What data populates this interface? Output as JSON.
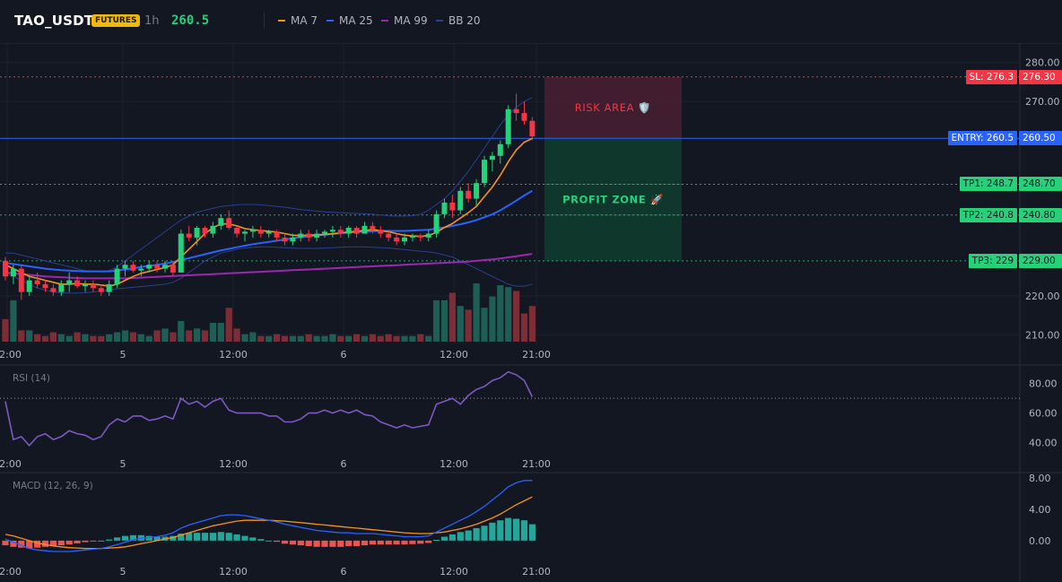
{
  "header": {
    "symbol": "TAO_USDT",
    "badge": "FUTURES",
    "timeframe": "1h",
    "price": "260.5",
    "legend": [
      {
        "label": "MA 7",
        "color": "#f7931a"
      },
      {
        "label": "MA 25",
        "color": "#2962ff"
      },
      {
        "label": "MA 99",
        "color": "#9c27b0"
      },
      {
        "label": "BB 20",
        "color": "#2a3f8f"
      }
    ]
  },
  "main_axis": {
    "ticks": [
      "280.00",
      "270.00",
      "220.00",
      "210.00"
    ],
    "tick_values": [
      280,
      270,
      220,
      210
    ],
    "range": [
      208,
      285
    ]
  },
  "levels": {
    "sl": {
      "tag": "SL: 276.3",
      "price": "276.30",
      "value": 276.3,
      "color": "#f23645"
    },
    "entry": {
      "tag": "ENTRY: 260.5",
      "price": "260.50",
      "value": 260.5,
      "color": "#2962ff"
    },
    "tp1": {
      "tag": "TP1: 248.7",
      "price": "248.70",
      "value": 248.7,
      "color": "#26d17a"
    },
    "tp2": {
      "tag": "TP2: 240.8",
      "price": "240.80",
      "value": 240.8,
      "color": "#26d17a"
    },
    "tp3": {
      "tag": "TP3: 229",
      "price": "229.00",
      "value": 229,
      "color": "#26d17a"
    }
  },
  "zones": {
    "risk_label": "RISK AREA 🛡️",
    "profit_label": "PROFIT ZONE 🚀"
  },
  "time_axis": [
    "12:00",
    "5",
    "12:00",
    "6",
    "12:00",
    "21:00"
  ],
  "rsi": {
    "title": "RSI (14)",
    "ticks": [
      "80.00",
      "60.00",
      "40.00"
    ],
    "tick_values": [
      80,
      60,
      40
    ],
    "overbought": 70,
    "range": [
      33,
      92
    ],
    "color": "#7e57c2"
  },
  "macd": {
    "title": "MACD (12, 26, 9)",
    "ticks": [
      "8.00",
      "4.00",
      "0.00"
    ],
    "tick_values": [
      8,
      4,
      0
    ],
    "range": [
      -2.2,
      8.6
    ],
    "macd_color": "#2962ff",
    "signal_color": "#f7931a",
    "hist_up": "#26a69a",
    "hist_down": "#ef5350"
  },
  "colors": {
    "up": "#26d17a",
    "down": "#f23645",
    "vol_up": "#1f5e55",
    "vol_down": "#7d2d35",
    "grid": "#1e222d"
  },
  "chart_data": {
    "type": "candlestick",
    "candles": [
      [
        229,
        230,
        224,
        225
      ],
      [
        225,
        228,
        223,
        227
      ],
      [
        227,
        228,
        219,
        221
      ],
      [
        221,
        225,
        220,
        224
      ],
      [
        224,
        226,
        222,
        223
      ],
      [
        223,
        224,
        221,
        222
      ],
      [
        222,
        223,
        220,
        221
      ],
      [
        221,
        224,
        220,
        223
      ],
      [
        223,
        226,
        221,
        224
      ],
      [
        224,
        225,
        222,
        222.5
      ],
      [
        222.5,
        224,
        221,
        223
      ],
      [
        223,
        224,
        221,
        222
      ],
      [
        222,
        223,
        220,
        221
      ],
      [
        221,
        224,
        220,
        223
      ],
      [
        223,
        228,
        222,
        227
      ],
      [
        227,
        229,
        225,
        228
      ],
      [
        228,
        229,
        226,
        226.5
      ],
      [
        226.5,
        228,
        225,
        227
      ],
      [
        227,
        229,
        226,
        228
      ],
      [
        228,
        229,
        226,
        227
      ],
      [
        227,
        229,
        226,
        228
      ],
      [
        228,
        229,
        225,
        226
      ],
      [
        226,
        237,
        226,
        236
      ],
      [
        236,
        238,
        234,
        235
      ],
      [
        235,
        238,
        233,
        237.5
      ],
      [
        237.5,
        238,
        235,
        236
      ],
      [
        236,
        239,
        235,
        238
      ],
      [
        238,
        241,
        237,
        240
      ],
      [
        240,
        242,
        237,
        237.5
      ],
      [
        237.5,
        238,
        235,
        236
      ],
      [
        236,
        237,
        234,
        236.5
      ],
      [
        236.5,
        238,
        235,
        237
      ],
      [
        237,
        238,
        235,
        236
      ],
      [
        236,
        237,
        235,
        236.5
      ],
      [
        236.5,
        237,
        234,
        235
      ],
      [
        235,
        236,
        233,
        234
      ],
      [
        234,
        236,
        233,
        235
      ],
      [
        235,
        237,
        234,
        236
      ],
      [
        236,
        237,
        234,
        235
      ],
      [
        235,
        237,
        234,
        236
      ],
      [
        236,
        237,
        235,
        236.5
      ],
      [
        236.5,
        238,
        235,
        237
      ],
      [
        237,
        238,
        235,
        236
      ],
      [
        236,
        238,
        235,
        237.5
      ],
      [
        237.5,
        238,
        235,
        236
      ],
      [
        236,
        239,
        236,
        238
      ],
      [
        238,
        239,
        236,
        237
      ],
      [
        237,
        238,
        235,
        236
      ],
      [
        236,
        237,
        234,
        235
      ],
      [
        235,
        236,
        233,
        234
      ],
      [
        234,
        236,
        233,
        235
      ],
      [
        235,
        236,
        234,
        235.5
      ],
      [
        235.5,
        236,
        234,
        235
      ],
      [
        235,
        237,
        234,
        236
      ],
      [
        236,
        242,
        235,
        241
      ],
      [
        241,
        245,
        240,
        244
      ],
      [
        244,
        246,
        240,
        242
      ],
      [
        242,
        248,
        241,
        247
      ],
      [
        247,
        249,
        244,
        245
      ],
      [
        245,
        250,
        243,
        249
      ],
      [
        249,
        256,
        248,
        255
      ],
      [
        255,
        257,
        252,
        256
      ],
      [
        256,
        260,
        254,
        259
      ],
      [
        259,
        269,
        258,
        268
      ],
      [
        268,
        272,
        265,
        267
      ],
      [
        267,
        270,
        264,
        265
      ],
      [
        265,
        266,
        260,
        261
      ]
    ],
    "ma7_series": [
      228,
      227,
      226,
      225,
      224.5,
      224,
      223.5,
      223,
      223,
      223.2,
      223,
      223,
      222.8,
      222.5,
      223,
      224,
      225,
      225.8,
      226.3,
      226.8,
      227.3,
      228,
      230,
      232,
      234,
      236,
      237.5,
      238.5,
      238.5,
      238,
      237.3,
      237,
      236.8,
      236.6,
      236.4,
      236,
      235.6,
      235.5,
      235.6,
      235.7,
      235.8,
      236,
      236.2,
      236.4,
      236.6,
      236.8,
      237,
      236.8,
      236.5,
      236,
      235.6,
      235.4,
      235.3,
      235.5,
      236.3,
      237.6,
      238.6,
      240,
      241.4,
      243,
      245.5,
      248,
      251,
      254.5,
      257.5,
      259.5,
      260.5
    ],
    "ma25_series": [
      228.5,
      228.2,
      227.9,
      227.6,
      227.3,
      227,
      226.8,
      226.6,
      226.5,
      226.4,
      226.3,
      226.3,
      226.3,
      226.3,
      226.5,
      226.8,
      227.1,
      227.4,
      227.7,
      228,
      228.3,
      228.7,
      229.2,
      229.7,
      230.2,
      230.7,
      231.2,
      231.7,
      232.1,
      232.5,
      232.9,
      233.3,
      233.6,
      233.9,
      234.2,
      234.5,
      234.8,
      235.1,
      235.3,
      235.5,
      235.7,
      235.9,
      236.1,
      236.3,
      236.4,
      236.5,
      236.6,
      236.7,
      236.7,
      236.7,
      236.7,
      236.8,
      236.9,
      237,
      237.3,
      237.6,
      238,
      238.4,
      238.9,
      239.5,
      240.2,
      241,
      242,
      243.2,
      244.5,
      245.8,
      247
    ],
    "ma99_series": [
      226,
      225.8,
      225.6,
      225.4,
      225.2,
      225,
      224.9,
      224.8,
      224.7,
      224.6,
      224.5,
      224.5,
      224.5,
      224.5,
      224.5,
      224.5,
      224.6,
      224.7,
      224.8,
      224.9,
      225,
      225.1,
      225.2,
      225.3,
      225.4,
      225.5,
      225.6,
      225.7,
      225.8,
      225.9,
      226,
      226.1,
      226.2,
      226.3,
      226.4,
      226.5,
      226.6,
      226.7,
      226.8,
      226.9,
      227,
      227.1,
      227.2,
      227.3,
      227.4,
      227.5,
      227.6,
      227.7,
      227.8,
      227.9,
      228,
      228.1,
      228.2,
      228.3,
      228.4,
      228.5,
      228.6,
      228.7,
      228.8,
      229,
      229.2,
      229.4,
      229.6,
      229.9,
      230.2,
      230.5,
      230.8
    ],
    "bb_upper": [
      231,
      231,
      230.5,
      230,
      229.5,
      229,
      228.5,
      228,
      227.5,
      227,
      226.5,
      226.3,
      226.2,
      226.5,
      227.5,
      229,
      230.5,
      232,
      233.5,
      235,
      236.5,
      238,
      239.5,
      240.5,
      241.5,
      242,
      242.5,
      243,
      243.2,
      243.4,
      243.5,
      243.5,
      243.4,
      243.2,
      243,
      242.8,
      242.5,
      242.2,
      242,
      241.8,
      241.6,
      241.5,
      241.4,
      241.3,
      241.2,
      241.1,
      241,
      240.8,
      240.6,
      240.5,
      240.5,
      240.6,
      241,
      242,
      243.5,
      245,
      247,
      249.5,
      252,
      255,
      258,
      261,
      264,
      266.5,
      268.5,
      270,
      271
    ],
    "bb_lower": [
      226,
      225,
      224,
      223,
      222,
      221.5,
      221,
      220.8,
      220.7,
      220.7,
      220.8,
      221,
      221.2,
      221.5,
      221.8,
      222,
      222.2,
      222.4,
      222.6,
      222.8,
      223,
      223.5,
      224.5,
      226,
      227.5,
      229,
      230,
      231,
      231.5,
      232,
      232.3,
      232.5,
      232.6,
      232.6,
      232.5,
      232.4,
      232.3,
      232.2,
      232.2,
      232.2,
      232.3,
      232.4,
      232.5,
      232.6,
      232.6,
      232.6,
      232.5,
      232.4,
      232.3,
      232.1,
      231.9,
      231.7,
      231.5,
      231.3,
      231,
      230.5,
      230,
      229,
      228,
      227,
      226,
      225,
      224,
      223,
      222.5,
      222.5,
      223
    ],
    "volumes": [
      1.2,
      2.2,
      0.6,
      0.6,
      0.4,
      0.3,
      0.5,
      0.4,
      0.3,
      0.5,
      0.4,
      0.3,
      0.3,
      0.4,
      0.5,
      0.6,
      0.5,
      0.4,
      0.3,
      0.6,
      0.7,
      0.5,
      1.1,
      0.6,
      0.7,
      0.6,
      1.0,
      1.0,
      1.8,
      0.7,
      0.4,
      0.5,
      0.3,
      0.3,
      0.4,
      0.3,
      0.3,
      0.3,
      0.4,
      0.3,
      0.3,
      0.4,
      0.3,
      0.3,
      0.4,
      0.3,
      0.4,
      0.3,
      0.4,
      0.3,
      0.3,
      0.3,
      0.4,
      0.3,
      2.2,
      2.2,
      2.6,
      1.9,
      1.7,
      3.1,
      1.8,
      2.4,
      3.0,
      2.9,
      2.7,
      1.5,
      1.9
    ],
    "rsi_series": [
      68,
      42,
      44,
      38,
      44,
      46,
      42,
      44,
      48,
      46,
      45,
      42,
      44,
      52,
      56,
      54,
      58,
      58,
      55,
      56,
      58,
      56,
      70,
      66,
      68,
      64,
      68,
      70,
      62,
      60,
      60,
      60,
      60,
      58,
      58,
      54,
      54,
      56,
      60,
      60,
      62,
      60,
      62,
      60,
      62,
      59,
      58,
      54,
      52,
      50,
      52,
      50,
      51,
      52,
      66,
      68,
      70,
      66,
      72,
      76,
      78,
      82,
      84,
      88,
      86,
      82,
      71
    ],
    "macd_series": [
      0.2,
      -0.2,
      -0.6,
      -1.0,
      -1.2,
      -1.3,
      -1.4,
      -1.4,
      -1.4,
      -1.3,
      -1.2,
      -1.1,
      -1.0,
      -0.8,
      -0.5,
      -0.2,
      0.1,
      0.3,
      0.4,
      0.5,
      0.7,
      1.0,
      1.6,
      2.0,
      2.3,
      2.6,
      2.9,
      3.2,
      3.3,
      3.3,
      3.2,
      3.0,
      2.8,
      2.6,
      2.4,
      2.1,
      1.9,
      1.7,
      1.5,
      1.3,
      1.2,
      1.1,
      1.0,
      1.0,
      0.9,
      0.9,
      0.9,
      0.8,
      0.7,
      0.6,
      0.5,
      0.5,
      0.5,
      0.6,
      1.1,
      1.6,
      2.1,
      2.6,
      3.1,
      3.7,
      4.4,
      5.2,
      6.0,
      6.9,
      7.4,
      7.7,
      7.7
    ],
    "signal_series": [
      0.8,
      0.6,
      0.3,
      0.0,
      -0.3,
      -0.5,
      -0.7,
      -0.8,
      -0.9,
      -0.95,
      -1.0,
      -1.0,
      -1.0,
      -0.95,
      -0.9,
      -0.8,
      -0.6,
      -0.4,
      -0.2,
      0.0,
      0.2,
      0.4,
      0.7,
      1.0,
      1.3,
      1.6,
      1.9,
      2.1,
      2.3,
      2.5,
      2.6,
      2.6,
      2.6,
      2.6,
      2.55,
      2.5,
      2.4,
      2.3,
      2.2,
      2.1,
      2.0,
      1.9,
      1.8,
      1.7,
      1.6,
      1.5,
      1.4,
      1.3,
      1.2,
      1.1,
      1.0,
      0.95,
      0.9,
      0.9,
      1.0,
      1.1,
      1.3,
      1.5,
      1.8,
      2.1,
      2.5,
      2.9,
      3.4,
      4.0,
      4.6,
      5.1,
      5.6
    ],
    "hist_series": [
      -0.6,
      -0.8,
      -0.9,
      -1.0,
      -0.9,
      -0.8,
      -0.7,
      -0.6,
      -0.5,
      -0.35,
      -0.2,
      -0.1,
      0.0,
      0.15,
      0.4,
      0.6,
      0.7,
      0.7,
      0.6,
      0.5,
      0.5,
      0.6,
      0.9,
      1.0,
      1.0,
      1.0,
      1.0,
      1.1,
      1.0,
      0.8,
      0.6,
      0.4,
      0.2,
      0.0,
      -0.15,
      -0.4,
      -0.5,
      -0.6,
      -0.7,
      -0.8,
      -0.8,
      -0.8,
      -0.8,
      -0.7,
      -0.7,
      -0.6,
      -0.5,
      -0.5,
      -0.5,
      -0.5,
      -0.5,
      -0.45,
      -0.4,
      -0.3,
      0.1,
      0.5,
      0.8,
      1.1,
      1.3,
      1.6,
      1.9,
      2.3,
      2.6,
      2.9,
      2.8,
      2.6,
      2.1
    ]
  }
}
